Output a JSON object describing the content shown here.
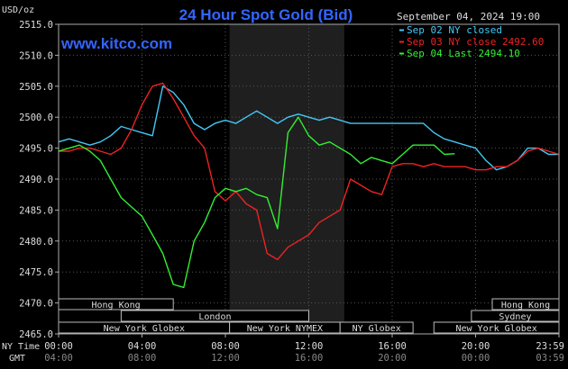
{
  "chart_data": {
    "type": "line",
    "title": "24 Hour Spot Gold (Bid)",
    "watermark": "www.kitco.com",
    "date_label": "September 04, 2024 19:00",
    "y_unit": "USD/oz",
    "ylim": [
      2465,
      2515
    ],
    "y_ticks": [
      "2515.0",
      "2510.0",
      "2505.0",
      "2500.0",
      "2495.0",
      "2490.0",
      "2485.0",
      "2480.0",
      "2475.0",
      "2470.0",
      "2465.0"
    ],
    "x_axis_label_ny": "NY Time",
    "x_axis_label_gmt": "GMT",
    "x_ticks_ny": [
      "00:00",
      "04:00",
      "08:00",
      "12:00",
      "16:00",
      "20:00",
      "23:59"
    ],
    "x_ticks_gmt": [
      "04:00",
      "08:00",
      "12:00",
      "16:00",
      "20:00",
      "00:00",
      "03:59"
    ],
    "colors": {
      "sep02": "#44c8f5",
      "sep03": "#ee2222",
      "sep04": "#33ee33",
      "axis_text": "#dddddd",
      "title": "#3366ff",
      "watermark": "#3366ff",
      "shade": "#1f1f1f"
    },
    "legend": [
      {
        "label": "Sep 02 NY closed",
        "color": "#44c8f5"
      },
      {
        "label": "Sep 03 NY close 2492.60",
        "color": "#ee2222"
      },
      {
        "label": "Sep 04 Last 2494.10",
        "color": "#33ee33"
      }
    ],
    "shaded_hours": [
      8.2,
      13.7
    ],
    "sessions": [
      {
        "label": "Hong Kong",
        "start": 0,
        "end": 5.5,
        "row": 0
      },
      {
        "label": "Hong Kong",
        "start": 20.8,
        "end": 24,
        "row": 0
      },
      {
        "label": "London",
        "start": 3.0,
        "end": 12.0,
        "row": 1
      },
      {
        "label": "Sydney",
        "start": 19.8,
        "end": 24,
        "row": 1
      },
      {
        "label": "New York Globex",
        "start": 0,
        "end": 8.2,
        "row": 2
      },
      {
        "label": "New York NYMEX",
        "start": 8.2,
        "end": 13.5,
        "row": 2
      },
      {
        "label": "NY Globex",
        "start": 13.5,
        "end": 17.0,
        "row": 2
      },
      {
        "label": "New York Globex",
        "start": 18.0,
        "end": 24,
        "row": 2
      }
    ],
    "series": [
      {
        "name": "Sep 02 NY closed",
        "x": [
          0,
          0.5,
          1,
          1.5,
          2,
          2.5,
          3,
          3.5,
          4,
          4.5,
          5,
          5.5,
          6,
          6.5,
          7,
          7.5,
          8,
          8.5,
          9,
          9.5,
          10,
          10.5,
          11,
          11.5,
          12,
          12.5,
          13,
          13.5,
          14,
          15,
          16,
          17,
          17.5,
          18,
          18.5,
          19,
          19.5,
          20,
          20.5,
          21,
          21.5,
          22,
          22.5,
          23,
          23.5,
          24
        ],
        "values": [
          2496,
          2496.5,
          2496,
          2495.5,
          2496,
          2497,
          2498.5,
          2498,
          2497.5,
          2497,
          2505,
          2504,
          2502,
          2499,
          2498,
          2499,
          2499.5,
          2499,
          2500,
          2501,
          2500,
          2499,
          2500,
          2500.5,
          2500,
          2499.5,
          2500,
          2499.5,
          2499,
          2499,
          2499,
          2499,
          2499,
          2497.5,
          2496.5,
          2496,
          2495.5,
          2495,
          2493,
          2491.5,
          2492,
          2493,
          2495,
          2495,
          2494,
          2494
        ]
      },
      {
        "name": "Sep 03 NY close 2492.60",
        "x": [
          0,
          0.5,
          1,
          1.5,
          2,
          2.5,
          3,
          3.5,
          4,
          4.5,
          5,
          5.5,
          6,
          6.5,
          7,
          7.5,
          8,
          8.5,
          9,
          9.5,
          10,
          10.5,
          11,
          11.5,
          12,
          12.5,
          13,
          13.5,
          14,
          14.5,
          15,
          15.5,
          16,
          16.5,
          17,
          17.5,
          18,
          18.5,
          19,
          19.5,
          20,
          20.5,
          21,
          21.5,
          22,
          22.5,
          23,
          23.5,
          24
        ],
        "values": [
          2494.5,
          2494.5,
          2495,
          2495,
          2494.5,
          2494,
          2495,
          2498,
          2502,
          2505,
          2505.5,
          2503,
          2500,
          2497,
          2495,
          2488,
          2486.5,
          2488,
          2486,
          2485,
          2478,
          2477,
          2479,
          2480,
          2481,
          2483,
          2484,
          2485,
          2490,
          2489,
          2488,
          2487.5,
          2492,
          2492.5,
          2492.5,
          2492,
          2492.5,
          2492,
          2492,
          2492,
          2491.5,
          2491.5,
          2492,
          2492,
          2493,
          2494.5,
          2495,
          2494.5,
          2494
        ]
      },
      {
        "name": "Sep 04 Last 2494.10",
        "x": [
          0,
          0.5,
          1,
          1.5,
          2,
          2.5,
          3,
          3.5,
          4,
          4.5,
          5,
          5.5,
          6,
          6.5,
          7,
          7.5,
          8,
          8.5,
          9,
          9.5,
          10,
          10.5,
          11,
          11.5,
          12,
          12.5,
          13,
          13.5,
          14,
          14.5,
          15,
          15.5,
          16,
          16.5,
          17,
          17.5,
          18,
          18.5,
          19
        ],
        "values": [
          2494.5,
          2495,
          2495.5,
          2494.5,
          2493,
          2490,
          2487,
          2485.5,
          2484,
          2481,
          2478,
          2473,
          2472.5,
          2480,
          2483,
          2487,
          2488.5,
          2488,
          2488.5,
          2487.5,
          2487,
          2482,
          2497.5,
          2500,
          2497,
          2495.5,
          2496,
          2495,
          2494,
          2492.5,
          2493.5,
          2493,
          2492.5,
          2494,
          2495.5,
          2495.5,
          2495.5,
          2494,
          2494.1
        ]
      }
    ]
  }
}
